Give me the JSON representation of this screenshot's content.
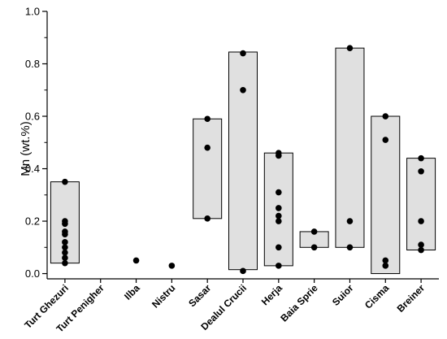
{
  "chart_data": {
    "type": "box",
    "title": "",
    "xlabel": "",
    "ylabel": "Mn (wt.%)",
    "ylim": [
      -0.02,
      1.0
    ],
    "yticks": [
      0.0,
      0.2,
      0.4,
      0.6,
      0.8,
      1.0
    ],
    "ytick_labels": [
      "0.0",
      "0.2",
      "0.4",
      "0.6",
      "0.8",
      "1.0"
    ],
    "grid": false,
    "legend": false,
    "box_color": "#e0e0e0",
    "point_color": "#000000",
    "categories": [
      "Turt Ghezuri",
      "Turt Penigher",
      "Ilba",
      "Nistru",
      "Sasar",
      "Dealul Crucii",
      "Herja",
      "Baia Sprie",
      "Suior",
      "Cisma",
      "Breiner"
    ],
    "groups": [
      {
        "name": "Turt Ghezuri",
        "box": [
          0.04,
          0.35
        ],
        "points": [
          0.35,
          0.2,
          0.19,
          0.16,
          0.15,
          0.12,
          0.1,
          0.08,
          0.06,
          0.04
        ]
      },
      {
        "name": "Turt Penigher",
        "box": null,
        "points": []
      },
      {
        "name": "Ilba",
        "box": [
          0.05,
          0.05
        ],
        "points": [
          0.05
        ]
      },
      {
        "name": "Nistru",
        "box": [
          0.03,
          0.03
        ],
        "points": [
          0.03
        ]
      },
      {
        "name": "Sasar",
        "box": [
          0.21,
          0.59
        ],
        "points": [
          0.59,
          0.48,
          0.21
        ]
      },
      {
        "name": "Dealul Crucii",
        "box": [
          0.015,
          0.845
        ],
        "points": [
          0.84,
          0.7,
          0.01
        ]
      },
      {
        "name": "Herja",
        "box": [
          0.03,
          0.46
        ],
        "points": [
          0.46,
          0.45,
          0.31,
          0.25,
          0.22,
          0.2,
          0.1,
          0.03
        ]
      },
      {
        "name": "Baia Sprie",
        "box": [
          0.1,
          0.16
        ],
        "points": [
          0.16,
          0.1
        ]
      },
      {
        "name": "Suior",
        "box": [
          0.1,
          0.86
        ],
        "points": [
          0.86,
          0.2,
          0.1
        ]
      },
      {
        "name": "Cisma",
        "box": [
          0.0,
          0.6
        ],
        "points": [
          0.6,
          0.51,
          0.05,
          0.03
        ]
      },
      {
        "name": "Breiner",
        "box": [
          0.09,
          0.44
        ],
        "points": [
          0.44,
          0.39,
          0.2,
          0.11,
          0.09
        ]
      }
    ]
  }
}
